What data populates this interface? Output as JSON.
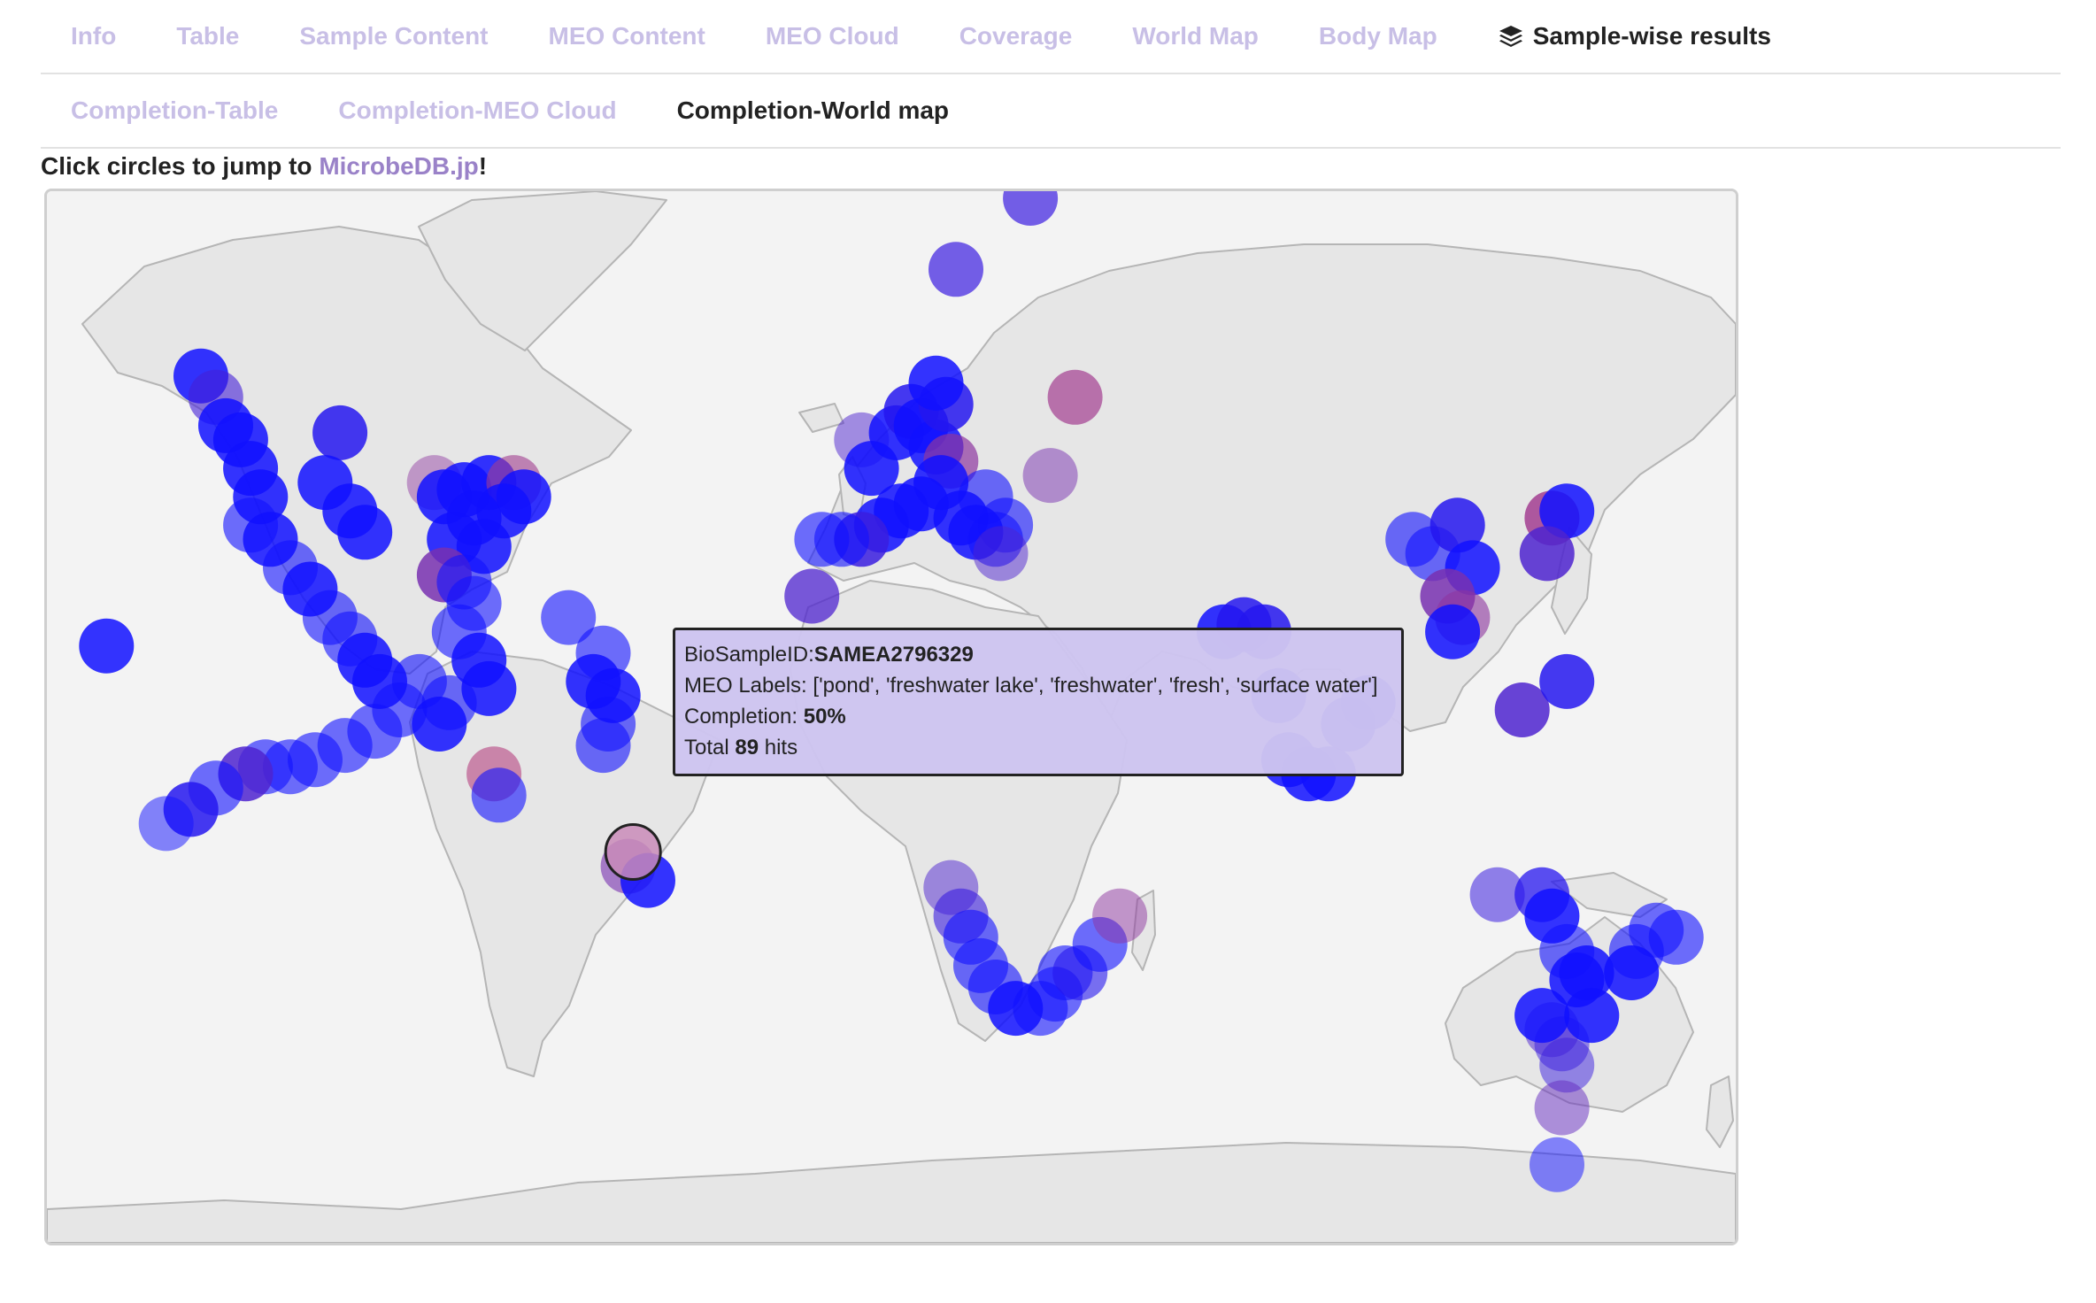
{
  "nav": {
    "main_tabs": [
      "Info",
      "Table",
      "Sample Content",
      "MEO Content",
      "MEO Cloud",
      "Coverage",
      "World Map",
      "Body Map",
      "Sample-wise results"
    ],
    "active_main": "Sample-wise results",
    "sub_tabs": [
      "Completion-Table",
      "Completion-MEO Cloud",
      "Completion-World map"
    ],
    "active_sub": "Completion-World map"
  },
  "notice": {
    "prefix": "Click circles to jump to ",
    "link": "MicrobeDB.jp",
    "suffix": "!"
  },
  "tooltip": {
    "id_label": "BioSampleID:",
    "id_value": "SAMEA2796329",
    "meo_label": "MEO Labels:",
    "meo_value": "['pond', 'freshwater lake', 'freshwater', 'fresh', 'surface water']",
    "completion_label": "Completion:",
    "completion_value": "50%",
    "total_prefix": "Total",
    "total_value": "89",
    "total_suffix": "hits"
  },
  "colors": {
    "accent_tab": "#c8bfe6",
    "link": "#9a82c8",
    "land": "#e6e6e6",
    "ocean": "#f3f3f3",
    "marker_low": "#1010ff",
    "marker_high": "#e05060"
  },
  "markers": [
    {
      "lon": -139,
      "lat": 59,
      "completion": 0.0,
      "opacity": 0.85
    },
    {
      "lon": -136,
      "lat": 56,
      "completion": 0.25,
      "opacity": 0.6
    },
    {
      "lon": -134,
      "lat": 52,
      "completion": 0.0,
      "opacity": 0.85
    },
    {
      "lon": -131,
      "lat": 50,
      "completion": 0.0,
      "opacity": 0.85
    },
    {
      "lon": -129,
      "lat": 46,
      "completion": 0.0,
      "opacity": 0.85
    },
    {
      "lon": -127,
      "lat": 42,
      "completion": 0.0,
      "opacity": 0.85
    },
    {
      "lon": -129,
      "lat": 38,
      "completion": 0.0,
      "opacity": 0.6
    },
    {
      "lon": -125,
      "lat": 36,
      "completion": 0.0,
      "opacity": 0.85
    },
    {
      "lon": -121,
      "lat": 32,
      "completion": 0.0,
      "opacity": 0.6
    },
    {
      "lon": -117,
      "lat": 29,
      "completion": 0.0,
      "opacity": 0.85
    },
    {
      "lon": -113,
      "lat": 25,
      "completion": 0.0,
      "opacity": 0.6
    },
    {
      "lon": -109,
      "lat": 22,
      "completion": 0.0,
      "opacity": 0.6
    },
    {
      "lon": -106,
      "lat": 19,
      "completion": 0.0,
      "opacity": 0.85
    },
    {
      "lon": -103,
      "lat": 16,
      "completion": 0.0,
      "opacity": 0.85
    },
    {
      "lon": -158,
      "lat": 21,
      "completion": 0.0,
      "opacity": 0.85
    },
    {
      "lon": -111,
      "lat": 51,
      "completion": 0.1,
      "opacity": 0.85
    },
    {
      "lon": -114,
      "lat": 44,
      "completion": 0.0,
      "opacity": 0.85
    },
    {
      "lon": -109,
      "lat": 40,
      "completion": 0.0,
      "opacity": 0.85
    },
    {
      "lon": -106,
      "lat": 37,
      "completion": 0.0,
      "opacity": 0.85
    },
    {
      "lon": -92,
      "lat": 44,
      "completion": 0.6,
      "opacity": 0.45
    },
    {
      "lon": -90,
      "lat": 42,
      "completion": 0.0,
      "opacity": 0.85
    },
    {
      "lon": -86,
      "lat": 43,
      "completion": 0.0,
      "opacity": 0.85
    },
    {
      "lon": -81,
      "lat": 44,
      "completion": 0.0,
      "opacity": 0.85
    },
    {
      "lon": -76,
      "lat": 44,
      "completion": 0.7,
      "opacity": 0.6
    },
    {
      "lon": -74,
      "lat": 42,
      "completion": 0.0,
      "opacity": 0.85
    },
    {
      "lon": -78,
      "lat": 40,
      "completion": 0.0,
      "opacity": 0.85
    },
    {
      "lon": -84,
      "lat": 39,
      "completion": 0.0,
      "opacity": 0.85
    },
    {
      "lon": -88,
      "lat": 36,
      "completion": 0.0,
      "opacity": 0.85
    },
    {
      "lon": -82,
      "lat": 35,
      "completion": 0.0,
      "opacity": 0.85
    },
    {
      "lon": -90,
      "lat": 31,
      "completion": 0.5,
      "opacity": 0.85
    },
    {
      "lon": -86,
      "lat": 30,
      "completion": 0.0,
      "opacity": 0.6
    },
    {
      "lon": -84,
      "lat": 27,
      "completion": 0.0,
      "opacity": 0.6
    },
    {
      "lon": -87,
      "lat": 23,
      "completion": 0.0,
      "opacity": 0.6
    },
    {
      "lon": -83,
      "lat": 19,
      "completion": 0.0,
      "opacity": 0.85
    },
    {
      "lon": -81,
      "lat": 15,
      "completion": 0.0,
      "opacity": 0.85
    },
    {
      "lon": -89,
      "lat": 13,
      "completion": 0.0,
      "opacity": 0.6
    },
    {
      "lon": -95,
      "lat": 16,
      "completion": 0.0,
      "opacity": 0.6
    },
    {
      "lon": -99,
      "lat": 12,
      "completion": 0.0,
      "opacity": 0.6
    },
    {
      "lon": -104,
      "lat": 9,
      "completion": 0.0,
      "opacity": 0.6
    },
    {
      "lon": -110,
      "lat": 7,
      "completion": 0.0,
      "opacity": 0.6
    },
    {
      "lon": -116,
      "lat": 5,
      "completion": 0.0,
      "opacity": 0.6
    },
    {
      "lon": -121,
      "lat": 4,
      "completion": 0.0,
      "opacity": 0.6
    },
    {
      "lon": -126,
      "lat": 4,
      "completion": 0.0,
      "opacity": 0.6
    },
    {
      "lon": -130,
      "lat": 3,
      "completion": 0.3,
      "opacity": 0.85
    },
    {
      "lon": -136,
      "lat": 1,
      "completion": 0.0,
      "opacity": 0.6
    },
    {
      "lon": -141,
      "lat": -2,
      "completion": 0.1,
      "opacity": 0.85
    },
    {
      "lon": -146,
      "lat": -4,
      "completion": 0.0,
      "opacity": 0.5
    },
    {
      "lon": -91,
      "lat": 10,
      "completion": 0.0,
      "opacity": 0.85
    },
    {
      "lon": -80,
      "lat": 3,
      "completion": 0.8,
      "opacity": 0.6
    },
    {
      "lon": -79,
      "lat": 0,
      "completion": 0.0,
      "opacity": 0.6
    },
    {
      "lon": -65,
      "lat": 25,
      "completion": 0.0,
      "opacity": 0.6
    },
    {
      "lon": -58,
      "lat": 20,
      "completion": 0.0,
      "opacity": 0.6
    },
    {
      "lon": -60,
      "lat": 16,
      "completion": 0.0,
      "opacity": 0.85
    },
    {
      "lon": -56,
      "lat": 14,
      "completion": 0.0,
      "opacity": 0.85
    },
    {
      "lon": -57,
      "lat": 10,
      "completion": 0.0,
      "opacity": 0.6
    },
    {
      "lon": -58,
      "lat": 7,
      "completion": 0.0,
      "opacity": 0.6
    },
    {
      "lon": -53,
      "lat": -10,
      "completion": 0.5,
      "opacity": 0.6
    },
    {
      "lon": -49,
      "lat": -12,
      "completion": 0.0,
      "opacity": 0.85
    },
    {
      "lon": -6,
      "lat": 50,
      "completion": 0.3,
      "opacity": 0.5
    },
    {
      "lon": -4,
      "lat": 46,
      "completion": 0.0,
      "opacity": 0.85
    },
    {
      "lon": 1,
      "lat": 51,
      "completion": 0.0,
      "opacity": 0.85
    },
    {
      "lon": 4,
      "lat": 54,
      "completion": 0.1,
      "opacity": 0.85
    },
    {
      "lon": 6,
      "lat": 52,
      "completion": 0.0,
      "opacity": 0.85
    },
    {
      "lon": 9,
      "lat": 49,
      "completion": 0.0,
      "opacity": 0.85
    },
    {
      "lon": 12,
      "lat": 47,
      "completion": 0.6,
      "opacity": 0.7
    },
    {
      "lon": 10,
      "lat": 44,
      "completion": 0.0,
      "opacity": 0.85
    },
    {
      "lon": 6,
      "lat": 41,
      "completion": 0.0,
      "opacity": 0.85
    },
    {
      "lon": 2,
      "lat": 40,
      "completion": 0.0,
      "opacity": 0.85
    },
    {
      "lon": -2,
      "lat": 38,
      "completion": 0.0,
      "opacity": 0.85
    },
    {
      "lon": -6,
      "lat": 36,
      "completion": 0.2,
      "opacity": 0.85
    },
    {
      "lon": -10,
      "lat": 36,
      "completion": 0.0,
      "opacity": 0.6
    },
    {
      "lon": -14,
      "lat": 36,
      "completion": 0.0,
      "opacity": 0.6
    },
    {
      "lon": -16,
      "lat": 28,
      "completion": 0.3,
      "opacity": 0.75
    },
    {
      "lon": 14,
      "lat": 39,
      "completion": 0.0,
      "opacity": 0.85
    },
    {
      "lon": 17,
      "lat": 37,
      "completion": 0.0,
      "opacity": 0.85
    },
    {
      "lon": 21,
      "lat": 36,
      "completion": 0.0,
      "opacity": 0.6
    },
    {
      "lon": 23,
      "lat": 38,
      "completion": 0.0,
      "opacity": 0.6
    },
    {
      "lon": 22,
      "lat": 34,
      "completion": 0.3,
      "opacity": 0.5
    },
    {
      "lon": 19,
      "lat": 42,
      "completion": 0.0,
      "opacity": 0.6
    },
    {
      "lon": 11,
      "lat": 55,
      "completion": 0.1,
      "opacity": 0.85
    },
    {
      "lon": 9,
      "lat": 58,
      "completion": 0.0,
      "opacity": 0.85
    },
    {
      "lon": 37,
      "lat": 56,
      "completion": 0.7,
      "opacity": 0.7
    },
    {
      "lon": 32,
      "lat": 45,
      "completion": 0.5,
      "opacity": 0.5
    },
    {
      "lon": 13,
      "lat": 74,
      "completion": 0.2,
      "opacity": 0.7
    },
    {
      "lon": 12,
      "lat": -13,
      "completion": 0.3,
      "opacity": 0.5
    },
    {
      "lon": 14,
      "lat": -17,
      "completion": 0.2,
      "opacity": 0.6
    },
    {
      "lon": 16,
      "lat": -20,
      "completion": 0.0,
      "opacity": 0.6
    },
    {
      "lon": 18,
      "lat": -24,
      "completion": 0.0,
      "opacity": 0.6
    },
    {
      "lon": 21,
      "lat": -27,
      "completion": 0.0,
      "opacity": 0.6
    },
    {
      "lon": 25,
      "lat": -30,
      "completion": 0.0,
      "opacity": 0.85
    },
    {
      "lon": 30,
      "lat": -30,
      "completion": 0.0,
      "opacity": 0.6
    },
    {
      "lon": 33,
      "lat": -28,
      "completion": 0.0,
      "opacity": 0.6
    },
    {
      "lon": 35,
      "lat": -25,
      "completion": 0.0,
      "opacity": 0.6
    },
    {
      "lon": 38,
      "lat": -25,
      "completion": 0.1,
      "opacity": 0.6
    },
    {
      "lon": 42,
      "lat": -21,
      "completion": 0.0,
      "opacity": 0.6
    },
    {
      "lon": 46,
      "lat": -17,
      "completion": 0.6,
      "opacity": 0.5
    },
    {
      "lon": 67,
      "lat": 23,
      "completion": 0.0,
      "opacity": 0.85
    },
    {
      "lon": 71,
      "lat": 24,
      "completion": 0.1,
      "opacity": 0.85
    },
    {
      "lon": 75,
      "lat": 23,
      "completion": 0.1,
      "opacity": 0.85
    },
    {
      "lon": 78,
      "lat": 14,
      "completion": 0.0,
      "opacity": 0.85
    },
    {
      "lon": 80,
      "lat": 5,
      "completion": 0.0,
      "opacity": 0.85
    },
    {
      "lon": 84,
      "lat": 3,
      "completion": 0.0,
      "opacity": 0.85
    },
    {
      "lon": 88,
      "lat": 3,
      "completion": 0.0,
      "opacity": 0.85
    },
    {
      "lon": 92,
      "lat": 10,
      "completion": 0.0,
      "opacity": 0.85
    },
    {
      "lon": 96,
      "lat": 13,
      "completion": 0.0,
      "opacity": 0.85
    },
    {
      "lon": 105,
      "lat": 36,
      "completion": 0.0,
      "opacity": 0.6
    },
    {
      "lon": 109,
      "lat": 34,
      "completion": 0.0,
      "opacity": 0.6
    },
    {
      "lon": 114,
      "lat": 38,
      "completion": 0.1,
      "opacity": 0.85
    },
    {
      "lon": 117,
      "lat": 32,
      "completion": 0.0,
      "opacity": 0.85
    },
    {
      "lon": 112,
      "lat": 28,
      "completion": 0.5,
      "opacity": 0.85
    },
    {
      "lon": 115,
      "lat": 25,
      "completion": 0.6,
      "opacity": 0.6
    },
    {
      "lon": 113,
      "lat": 23,
      "completion": 0.0,
      "opacity": 0.85
    },
    {
      "lon": 133,
      "lat": 39,
      "completion": 0.7,
      "opacity": 0.85
    },
    {
      "lon": 136,
      "lat": 40,
      "completion": 0.0,
      "opacity": 0.85
    },
    {
      "lon": 132,
      "lat": 34,
      "completion": 0.3,
      "opacity": 0.85
    },
    {
      "lon": 127,
      "lat": 12,
      "completion": 0.3,
      "opacity": 0.85
    },
    {
      "lon": 136,
      "lat": 16,
      "completion": 0.1,
      "opacity": 0.85
    },
    {
      "lon": 122,
      "lat": -14,
      "completion": 0.2,
      "opacity": 0.55
    },
    {
      "lon": 131,
      "lat": -14,
      "completion": 0.1,
      "opacity": 0.75
    },
    {
      "lon": 133,
      "lat": -17,
      "completion": 0.0,
      "opacity": 0.85
    },
    {
      "lon": 136,
      "lat": -22,
      "completion": 0.0,
      "opacity": 0.6
    },
    {
      "lon": 138,
      "lat": -26,
      "completion": 0.0,
      "opacity": 0.85
    },
    {
      "lon": 140,
      "lat": -25,
      "completion": 0.0,
      "opacity": 0.85
    },
    {
      "lon": 133,
      "lat": -33,
      "completion": 0.3,
      "opacity": 0.5
    },
    {
      "lon": 135,
      "lat": -35,
      "completion": 0.2,
      "opacity": 0.5
    },
    {
      "lon": 136,
      "lat": -38,
      "completion": 0.2,
      "opacity": 0.5
    },
    {
      "lon": 131,
      "lat": -31,
      "completion": 0.0,
      "opacity": 0.85
    },
    {
      "lon": 141,
      "lat": -31,
      "completion": 0.0,
      "opacity": 0.85
    },
    {
      "lon": 135,
      "lat": -44,
      "completion": 0.4,
      "opacity": 0.5
    },
    {
      "lon": 134,
      "lat": -52,
      "completion": 0.0,
      "opacity": 0.5
    },
    {
      "lon": 150,
      "lat": -22,
      "completion": 0.0,
      "opacity": 0.6
    },
    {
      "lon": 154,
      "lat": -19,
      "completion": 0.0,
      "opacity": 0.6
    },
    {
      "lon": 158,
      "lat": -20,
      "completion": 0.0,
      "opacity": 0.6
    },
    {
      "lon": 149,
      "lat": -25,
      "completion": 0.0,
      "opacity": 0.85
    },
    {
      "lon": 28,
      "lat": 84,
      "completion": 0.2,
      "opacity": 0.7
    }
  ],
  "selected_marker": {
    "lon": -52,
    "lat": -8,
    "completion": 0.5
  }
}
